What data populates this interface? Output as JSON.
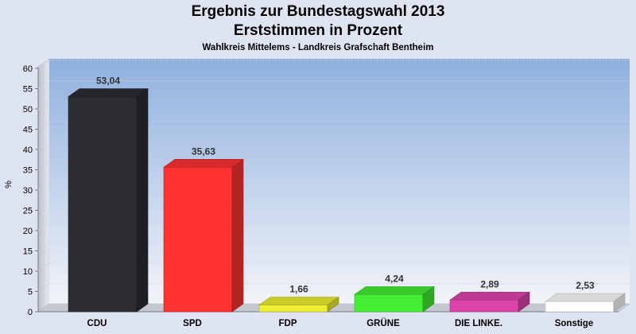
{
  "chart_data": {
    "type": "bar",
    "title": "Ergebnis zur Bundestagswahl 2013",
    "subtitle": "Erststimmen in Prozent",
    "subsubtitle": "Wahlkreis Mittelems - Landkreis Grafschaft Bentheim",
    "ylabel": "%",
    "xlabel": "",
    "ylim": [
      0,
      60
    ],
    "yticks": [
      "0",
      "5",
      "10",
      "15",
      "20",
      "25",
      "30",
      "35",
      "40",
      "45",
      "50",
      "55",
      "60"
    ],
    "grid": true,
    "categories": [
      "CDU",
      "SPD",
      "FDP",
      "GRÜNE",
      "DIE LINKE.",
      "Sonstige"
    ],
    "values": [
      53.04,
      35.63,
      1.66,
      4.24,
      2.89,
      2.53
    ],
    "value_labels": [
      "53,04",
      "35,63",
      "1,66",
      "4,24",
      "2,89",
      "2,53"
    ],
    "colors": [
      "#2b2d33",
      "#ff3333",
      "#eeee33",
      "#44ee33",
      "#dd44aa",
      "#ffffff"
    ]
  }
}
